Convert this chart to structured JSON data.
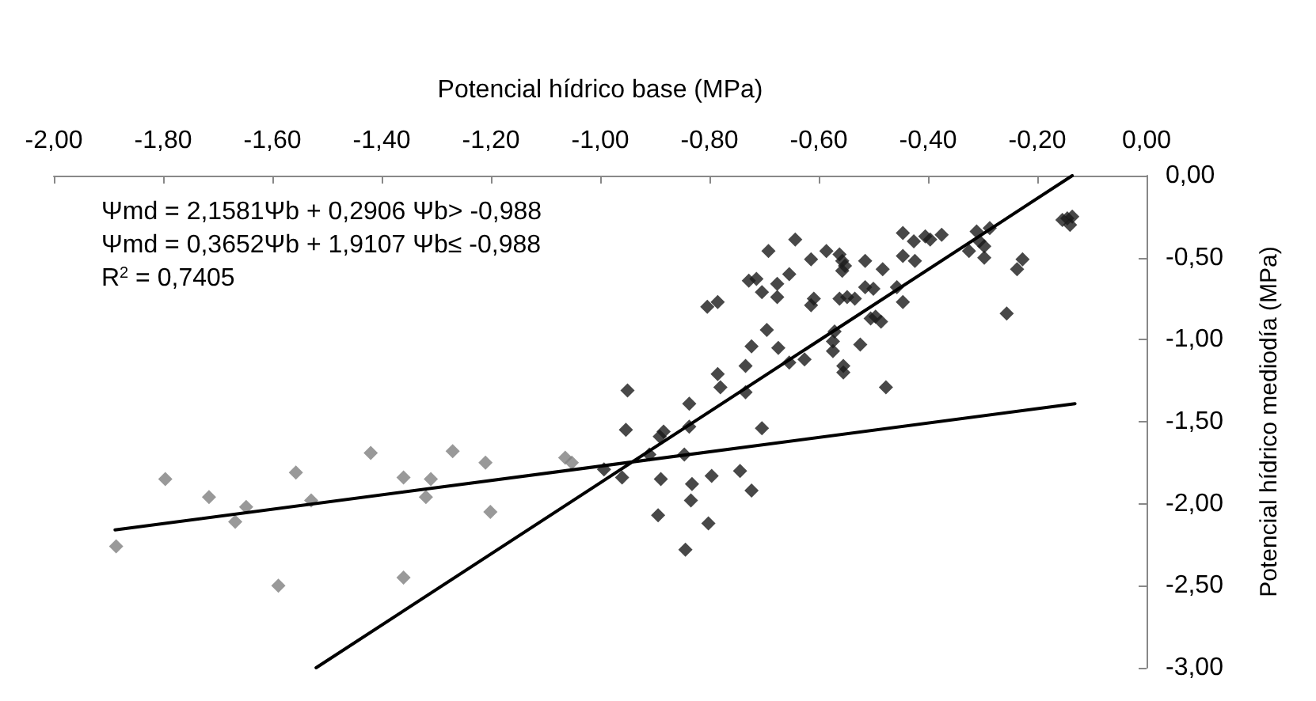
{
  "chart_data": {
    "type": "scatter",
    "xlabel": "Potencial hídrico base (MPa)",
    "ylabel": "Potencial hídrico mediodía (MPa)",
    "annotations": [
      "Ψmd = 2,1581Ψb + 0,2906 Ψb> -0,988",
      "Ψmd = 0,3652Ψb + 1,9107 Ψb≤ -0,988",
      "R$^{2}$ = 0,7405"
    ],
    "xlim": [
      -2,
      0
    ],
    "xticks": [
      {
        "value": -2,
        "label": "-2,00"
      },
      {
        "value": -1.8,
        "label": "-1,80"
      },
      {
        "value": -1.6,
        "label": "-1,60"
      },
      {
        "value": -1.4,
        "label": "-1,40"
      },
      {
        "value": -1.2,
        "label": "-1,20"
      },
      {
        "value": -1,
        "label": "-1,00"
      },
      {
        "value": -0.8,
        "label": "-0,80"
      },
      {
        "value": -0.6,
        "label": "-0,60"
      },
      {
        "value": -0.4,
        "label": "-0,40"
      },
      {
        "value": -0.2,
        "label": "-0,20"
      },
      {
        "value": 0,
        "label": "0,00"
      }
    ],
    "ylim": [
      -3,
      0
    ],
    "yticks": [
      {
        "value": -3,
        "label": "-3,00"
      },
      {
        "value": -2.5,
        "label": "-2,50"
      },
      {
        "value": -2,
        "label": "-2,00"
      },
      {
        "value": -1.5,
        "label": "-1,50"
      },
      {
        "value": -1,
        "label": "-1,00"
      },
      {
        "value": -0.5,
        "label": "-0,50"
      },
      {
        "value": 0,
        "label": "0,00"
      }
    ],
    "grid": false,
    "marker": "diamond",
    "series": [
      {
        "color": "#808080",
        "x": [
          -1.886,
          -1.796,
          -1.716,
          -1.648,
          -1.668,
          -1.557,
          -1.529,
          -1.589,
          -1.42,
          -1.36,
          -1.31,
          -1.319,
          -1.36,
          -1.27,
          -1.21,
          -1.201,
          -1.064,
          -1.052
        ],
        "values": [
          -2.26,
          -1.85,
          -1.96,
          -2.02,
          -2.11,
          -1.81,
          -1.98,
          -2.5,
          -1.69,
          -1.84,
          -1.85,
          -1.96,
          -2.45,
          -1.68,
          -1.75,
          -2.05,
          -1.72,
          -1.75
        ]
      },
      {
        "color": "#1a1a1a",
        "x": [
          -0.993,
          -0.95,
          -0.953,
          -0.96,
          -0.91,
          -0.891,
          -0.884,
          -0.889,
          -0.894,
          -0.844,
          -0.846,
          -0.837,
          -0.837,
          -0.832,
          -0.834,
          -0.802,
          -0.796,
          -0.785,
          -0.78,
          -0.734,
          -0.734,
          -0.744,
          -0.723,
          -0.704,
          -0.723,
          -0.695,
          -0.674,
          -0.654,
          -0.626,
          -0.574,
          -0.574,
          -0.555,
          -0.555,
          -0.524,
          -0.477,
          -0.804,
          -0.785,
          -0.728,
          -0.714,
          -0.704,
          -0.676,
          -0.676,
          -0.654,
          -0.692,
          -0.643,
          -0.614,
          -0.609,
          -0.614,
          -0.586,
          -0.562,
          -0.557,
          -0.557,
          -0.552,
          -0.562,
          -0.548,
          -0.534,
          -0.515,
          -0.515,
          -0.5,
          -0.483,
          -0.505,
          -0.496,
          -0.486,
          -0.571,
          -0.457,
          -0.446,
          -0.446,
          -0.446,
          -0.426,
          -0.424,
          -0.405,
          -0.396,
          -0.375,
          -0.325,
          -0.311,
          -0.306,
          -0.297,
          -0.297,
          -0.287,
          -0.256,
          -0.237,
          -0.227,
          -0.154,
          -0.145,
          -0.136,
          -0.14
        ],
        "values": [
          -1.79,
          -1.31,
          -1.55,
          -1.84,
          -1.7,
          -1.59,
          -1.56,
          -1.85,
          -2.07,
          -2.28,
          -1.7,
          -1.39,
          -1.53,
          -1.88,
          -1.98,
          -2.12,
          -1.83,
          -1.21,
          -1.29,
          -1.16,
          -1.32,
          -1.8,
          -1.92,
          -1.54,
          -1.04,
          -0.94,
          -1.05,
          -1.14,
          -1.12,
          -1.01,
          -1.07,
          -1.16,
          -1.2,
          -1.03,
          -1.29,
          -0.8,
          -0.77,
          -0.64,
          -0.63,
          -0.71,
          -0.74,
          -0.66,
          -0.6,
          -0.46,
          -0.39,
          -0.51,
          -0.75,
          -0.79,
          -0.46,
          -0.48,
          -0.52,
          -0.58,
          -0.55,
          -0.75,
          -0.74,
          -0.75,
          -0.52,
          -0.68,
          -0.69,
          -0.57,
          -0.87,
          -0.86,
          -0.89,
          -0.95,
          -0.68,
          -0.77,
          -0.35,
          -0.49,
          -0.4,
          -0.52,
          -0.37,
          -0.39,
          -0.36,
          -0.46,
          -0.34,
          -0.4,
          -0.43,
          -0.5,
          -0.32,
          -0.84,
          -0.57,
          -0.51,
          -0.27,
          -0.26,
          -0.25,
          -0.3
        ]
      },
      {
        "type": "line",
        "marker": "none",
        "color": "#000000",
        "x": [
          -1.52,
          -0.136
        ],
        "values": [
          -3,
          0
        ]
      },
      {
        "type": "line",
        "marker": "none",
        "color": "#000000",
        "x": [
          -1.888,
          -0.131
        ],
        "values": [
          -2.16,
          -1.39
        ]
      }
    ]
  }
}
